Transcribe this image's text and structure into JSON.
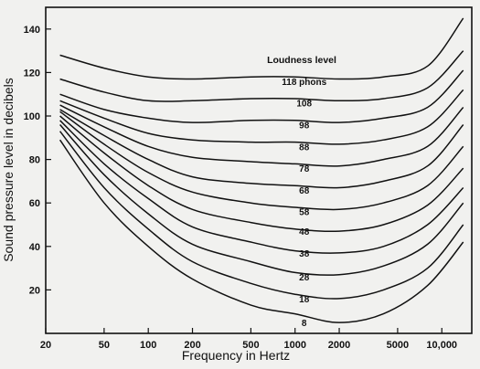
{
  "chart_data": {
    "type": "line",
    "x_scale": "log",
    "title": "",
    "xlabel": "Frequency in Hertz",
    "ylabel": "Sound pressure level in decibels",
    "legend_title": "Loudness level",
    "xlim": [
      20,
      16000
    ],
    "ylim": [
      0,
      150
    ],
    "x_ticks": [
      {
        "value": 20,
        "label": "20"
      },
      {
        "value": 50,
        "label": "50"
      },
      {
        "value": 100,
        "label": "100"
      },
      {
        "value": 200,
        "label": "200"
      },
      {
        "value": 500,
        "label": "500"
      },
      {
        "value": 1000,
        "label": "1000"
      },
      {
        "value": 2000,
        "label": "2000"
      },
      {
        "value": 5000,
        "label": "5000"
      },
      {
        "value": 10000,
        "label": "10,000"
      }
    ],
    "y_ticks": [
      {
        "value": 20,
        "label": "20"
      },
      {
        "value": 40,
        "label": "40"
      },
      {
        "value": 60,
        "label": "60"
      },
      {
        "value": 80,
        "label": "80"
      },
      {
        "value": 100,
        "label": "100"
      },
      {
        "value": 120,
        "label": "120"
      },
      {
        "value": 140,
        "label": "140"
      }
    ],
    "x": [
      25,
      50,
      100,
      200,
      500,
      1000,
      2000,
      4000,
      8000,
      14000
    ],
    "series": [
      {
        "label": "8",
        "label_at": [
          1000,
          5
        ],
        "y": [
          89,
          60,
          40,
          25,
          13,
          9,
          5,
          9,
          22,
          42
        ]
      },
      {
        "label": "18",
        "label_at": [
          1000,
          16
        ],
        "y": [
          93,
          67,
          48,
          33,
          23,
          18,
          16,
          20,
          30,
          50
        ]
      },
      {
        "label": "28",
        "label_at": [
          1000,
          26
        ],
        "y": [
          96,
          73,
          55,
          41,
          33,
          28,
          27,
          31,
          41,
          60
        ]
      },
      {
        "label": "38",
        "label_at": [
          1000,
          37
        ],
        "y": [
          98,
          78,
          62,
          49,
          42,
          38,
          37,
          40,
          50,
          67
        ]
      },
      {
        "label": "48",
        "label_at": [
          1000,
          47
        ],
        "y": [
          100,
          83,
          68,
          57,
          51,
          48,
          47,
          50,
          59,
          76
        ]
      },
      {
        "label": "58",
        "label_at": [
          1000,
          56
        ],
        "y": [
          102,
          87,
          74,
          65,
          60,
          58,
          57,
          60,
          68,
          86
        ]
      },
      {
        "label": "68",
        "label_at": [
          1000,
          66
        ],
        "y": [
          103,
          91,
          80,
          72,
          69,
          68,
          67,
          70,
          77,
          96
        ]
      },
      {
        "label": "78",
        "label_at": [
          1000,
          76
        ],
        "y": [
          105,
          95,
          86,
          81,
          79,
          78,
          77,
          80,
          86,
          104
        ]
      },
      {
        "label": "88",
        "label_at": [
          1000,
          86
        ],
        "y": [
          107,
          99,
          92,
          89,
          88,
          88,
          87,
          89,
          95,
          112
        ]
      },
      {
        "label": "98",
        "label_at": [
          1000,
          96
        ],
        "y": [
          110,
          103,
          99,
          97,
          98,
          98,
          97,
          99,
          104,
          121
        ]
      },
      {
        "label": "108",
        "label_at": [
          1000,
          106
        ],
        "y": [
          117,
          111,
          107,
          107,
          108,
          108,
          107,
          108,
          113,
          130
        ]
      },
      {
        "label": "118 phons",
        "label_at": [
          1000,
          116
        ],
        "y": [
          128,
          122,
          118,
          117,
          118,
          118,
          117,
          118,
          123,
          145
        ]
      }
    ]
  }
}
